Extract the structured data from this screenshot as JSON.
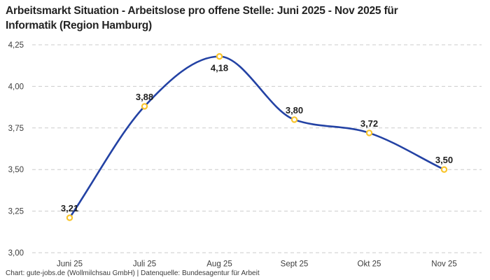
{
  "header": {
    "title_line1": "Arbeitsmarkt Situation - Arbeitslose pro offene Stelle: Juni 2025 - Nov 2025 für",
    "title_line2": "Informatik (Region Hamburg)"
  },
  "footer": {
    "text": "Chart: gute-jobs.de (Wollmilchsau GmbH) | Datenquelle: Bundesagentur für Arbeit"
  },
  "chart_data": {
    "type": "line",
    "title": "Arbeitsmarkt Situation - Arbeitslose pro offene Stelle: Juni 2025 - Nov 2025 für Informatik (Region Hamburg)",
    "categories": [
      "Juni 25",
      "Juli 25",
      "Aug 25",
      "Sept 25",
      "Okt 25",
      "Nov 25"
    ],
    "values": [
      3.21,
      3.88,
      4.18,
      3.8,
      3.72,
      3.5
    ],
    "point_labels": [
      "3,21",
      "3,88",
      "4,18",
      "3,80",
      "3,72",
      "3,50"
    ],
    "label_positions": [
      "above",
      "above",
      "below",
      "above",
      "above",
      "above"
    ],
    "y_ticks": [
      {
        "value": 4.25,
        "label": "4,25"
      },
      {
        "value": 4.0,
        "label": "4,00"
      },
      {
        "value": 3.75,
        "label": "3,75"
      },
      {
        "value": 3.5,
        "label": "3,50"
      },
      {
        "value": 3.25,
        "label": "3,25"
      },
      {
        "value": 3.0,
        "label": "3,00"
      }
    ],
    "xlabel": "",
    "ylabel": "",
    "ylim": [
      3.0,
      4.25
    ],
    "grid": "horizontal-dashed",
    "legend": "none",
    "interpolation": "monotone",
    "line_color": "#2342a4",
    "marker_stroke_color": "#f9c52c",
    "marker_fill_color": "#ffffff",
    "grid_color": "#cbcbcb"
  }
}
